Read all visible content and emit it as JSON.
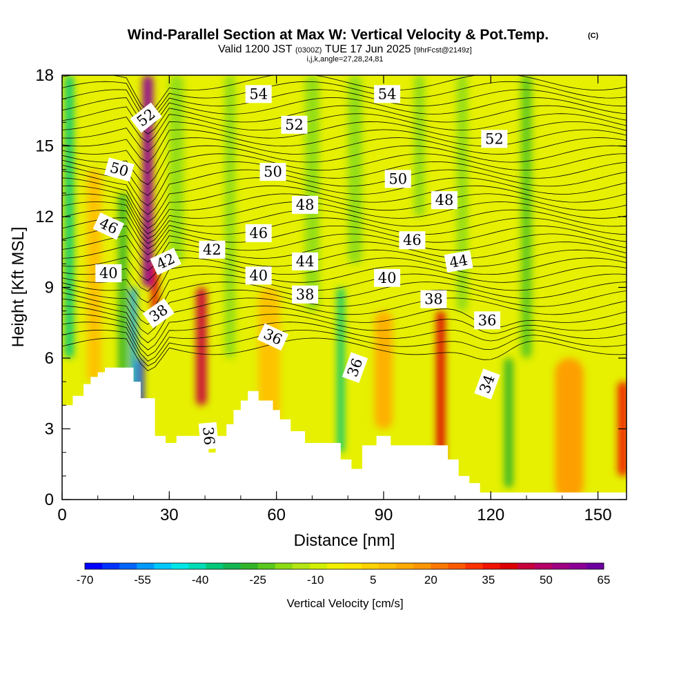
{
  "chart_data": {
    "type": "heatmap",
    "title": "Wind-Parallel Section at Max W: Vertical Velocity & Pot.Temp.",
    "title_mark": "(C)",
    "subtitle_parts": [
      "Valid 1200 JST",
      "(0300Z)",
      "TUE 17 Jun 2025",
      "[9hrFcst@2149z]"
    ],
    "subtitle2": "i,j,k,angle=27,28,24,81",
    "xlabel": "Distance [nm]",
    "ylabel": "Height [Kft MSL]",
    "xlim": [
      0,
      158
    ],
    "ylim": [
      0,
      18
    ],
    "xticks": [
      0,
      30,
      60,
      90,
      120,
      150
    ],
    "yticks": [
      0,
      3,
      6,
      9,
      12,
      15,
      18
    ],
    "colorbar": {
      "label": "Vertical Velocity [cm/s]",
      "range": [
        -70,
        65
      ],
      "tick_labels": [
        -70,
        -55,
        -40,
        -25,
        -10,
        5,
        20,
        35,
        50,
        65
      ],
      "colors": [
        "#0000ff",
        "#0033ff",
        "#0066ff",
        "#0099ff",
        "#00c8ff",
        "#00e6e6",
        "#00dcb4",
        "#00c878",
        "#14b450",
        "#32b428",
        "#5ac81e",
        "#8cdc14",
        "#b4e614",
        "#d2f000",
        "#f0f000",
        "#ffe600",
        "#ffd200",
        "#ffbe00",
        "#ffaa00",
        "#ff9600",
        "#ff7800",
        "#ff5a00",
        "#ff3200",
        "#f01400",
        "#dc0000",
        "#c8003c",
        "#b40064",
        "#a00082",
        "#8c0096",
        "#6e00a0"
      ]
    },
    "velocity_features": [
      {
        "x": 2,
        "y_range": [
          6,
          18
        ],
        "w": -38,
        "width": 2.5
      },
      {
        "x": 9,
        "y_range": [
          5,
          14
        ],
        "w": 10,
        "width": 4
      },
      {
        "x": 17,
        "y_range": [
          4,
          13
        ],
        "w": -26,
        "width": 2.5
      },
      {
        "x": 20,
        "y_range": [
          4.5,
          9
        ],
        "w": -55,
        "width": 1.8
      },
      {
        "x": 22,
        "y_range": [
          4,
          6
        ],
        "w": -68,
        "width": 0.8
      },
      {
        "x": 24,
        "y_range": [
          9,
          18
        ],
        "w": 60,
        "width": 3
      },
      {
        "x": 26,
        "y_range": [
          8,
          10
        ],
        "w": 40,
        "width": 2
      },
      {
        "x": 32,
        "y_range": [
          10,
          18
        ],
        "w": -18,
        "width": 4
      },
      {
        "x": 39,
        "y_range": [
          4,
          9
        ],
        "w": 45,
        "width": 3
      },
      {
        "x": 47,
        "y_range": [
          6,
          18
        ],
        "w": -18,
        "width": 3
      },
      {
        "x": 58,
        "y_range": [
          3,
          9
        ],
        "w": 10,
        "width": 6
      },
      {
        "x": 70,
        "y_range": [
          8,
          18
        ],
        "w": -20,
        "width": 4
      },
      {
        "x": 78,
        "y_range": [
          2,
          9
        ],
        "w": -35,
        "width": 2
      },
      {
        "x": 82,
        "y_range": [
          10,
          18
        ],
        "w": -20,
        "width": 4
      },
      {
        "x": 90,
        "y_range": [
          3,
          8
        ],
        "w": 15,
        "width": 5
      },
      {
        "x": 100,
        "y_range": [
          12,
          18
        ],
        "w": -18,
        "width": 3
      },
      {
        "x": 106,
        "y_range": [
          1,
          8
        ],
        "w": 38,
        "width": 2.5
      },
      {
        "x": 112,
        "y_range": [
          8,
          18
        ],
        "w": -20,
        "width": 3
      },
      {
        "x": 125,
        "y_range": [
          0.5,
          6
        ],
        "w": -28,
        "width": 2.5
      },
      {
        "x": 130,
        "y_range": [
          6,
          18
        ],
        "w": -24,
        "width": 3
      },
      {
        "x": 142,
        "y_range": [
          0,
          6
        ],
        "w": 18,
        "width": 8
      },
      {
        "x": 157,
        "y_range": [
          1,
          5
        ],
        "w": 35,
        "width": 3
      }
    ],
    "terrain": {
      "x": [
        0,
        3,
        3,
        6,
        6,
        8,
        8,
        10,
        10,
        12,
        12,
        14,
        14,
        20,
        20,
        22,
        22,
        26,
        26,
        29,
        29,
        32,
        32,
        34,
        34,
        41,
        41,
        43,
        43,
        46,
        46,
        48,
        48,
        50,
        50,
        52,
        52,
        55,
        55,
        59,
        59,
        61,
        61,
        64,
        64,
        68,
        68,
        72,
        72,
        78,
        78,
        81,
        81,
        84,
        84,
        88,
        88,
        92,
        92,
        100,
        100,
        108,
        108,
        111,
        111,
        114,
        114,
        117,
        117,
        158
      ],
      "y": [
        4,
        4,
        4.4,
        4.4,
        4.9,
        4.9,
        5.2,
        5.2,
        5.4,
        5.4,
        5.6,
        5.6,
        5.6,
        5.6,
        5.0,
        5.0,
        4.3,
        4.3,
        2.7,
        2.7,
        2.4,
        2.4,
        2.7,
        2.7,
        2.7,
        2.7,
        2.0,
        2.0,
        2.7,
        2.7,
        3.2,
        3.2,
        3.8,
        3.8,
        4.2,
        4.2,
        4.6,
        4.6,
        4.2,
        4.2,
        3.8,
        3.8,
        3.4,
        3.4,
        2.9,
        2.9,
        2.4,
        2.4,
        2.4,
        2.4,
        1.7,
        1.7,
        1.3,
        1.3,
        2.3,
        2.3,
        2.7,
        2.7,
        2.3,
        2.3,
        2.3,
        2.3,
        1.7,
        1.7,
        1.0,
        1.0,
        0.7,
        0.7,
        0.3,
        0.3
      ]
    },
    "isentropes_K_offset": "theta labels in plot units",
    "contour_labels": [
      {
        "text": "54",
        "x": 55,
        "y": 17.2,
        "angle": 0
      },
      {
        "text": "54",
        "x": 91,
        "y": 17.2,
        "angle": 0
      },
      {
        "text": "52",
        "x": 23.5,
        "y": 16.2,
        "angle": -38
      },
      {
        "text": "52",
        "x": 65,
        "y": 15.9,
        "angle": 0
      },
      {
        "text": "52",
        "x": 121,
        "y": 15.3,
        "angle": 0
      },
      {
        "text": "50",
        "x": 16,
        "y": 14.0,
        "angle": 15
      },
      {
        "text": "50",
        "x": 59,
        "y": 13.9,
        "angle": 0
      },
      {
        "text": "50",
        "x": 94,
        "y": 13.6,
        "angle": 0
      },
      {
        "text": "48",
        "x": 68,
        "y": 12.5,
        "angle": 0
      },
      {
        "text": "48",
        "x": 107,
        "y": 12.7,
        "angle": 0
      },
      {
        "text": "46",
        "x": 13,
        "y": 11.6,
        "angle": 25
      },
      {
        "text": "46",
        "x": 55,
        "y": 11.3,
        "angle": 0
      },
      {
        "text": "46",
        "x": 98,
        "y": 11.0,
        "angle": 0
      },
      {
        "text": "44",
        "x": 68,
        "y": 10.1,
        "angle": 0
      },
      {
        "text": "44",
        "x": 111,
        "y": 10.1,
        "angle": -10
      },
      {
        "text": "42",
        "x": 29,
        "y": 10.1,
        "angle": -25
      },
      {
        "text": "42",
        "x": 42,
        "y": 10.6,
        "angle": 0
      },
      {
        "text": "40",
        "x": 13,
        "y": 9.6,
        "angle": 0
      },
      {
        "text": "40",
        "x": 55,
        "y": 9.5,
        "angle": 0
      },
      {
        "text": "40",
        "x": 91,
        "y": 9.4,
        "angle": 0
      },
      {
        "text": "38",
        "x": 27,
        "y": 7.9,
        "angle": -35
      },
      {
        "text": "38",
        "x": 68,
        "y": 8.7,
        "angle": 0
      },
      {
        "text": "38",
        "x": 104,
        "y": 8.5,
        "angle": 0
      },
      {
        "text": "36",
        "x": 119,
        "y": 7.6,
        "angle": 0
      },
      {
        "text": "36",
        "x": 59,
        "y": 6.9,
        "angle": 25
      },
      {
        "text": "36",
        "x": 82,
        "y": 5.6,
        "angle": -70
      },
      {
        "text": "36",
        "x": 41,
        "y": 2.7,
        "angle": 85
      },
      {
        "text": "34",
        "x": 119,
        "y": 4.9,
        "angle": -70
      }
    ]
  }
}
